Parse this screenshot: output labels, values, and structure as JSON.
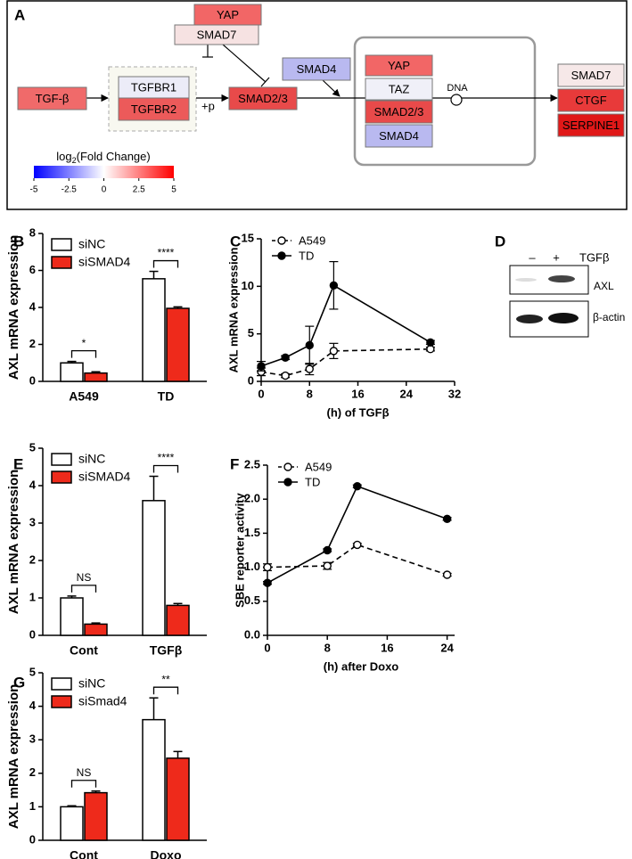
{
  "panel_a": {
    "label": "A",
    "nodes": [
      {
        "text": "YAP",
        "color": "#f26666"
      },
      {
        "text": "SMAD7",
        "color": "#f6e2e2"
      },
      {
        "text": "TGF-β",
        "color": "#f06a6a"
      },
      {
        "text": "TGFBR1",
        "color": "#ececf8"
      },
      {
        "text": "TGFBR2",
        "color": "#ec5a5a"
      },
      {
        "text": "SMAD2/3",
        "color": "#e84a4a"
      },
      {
        "text": "SMAD4",
        "color": "#b9b9f0"
      },
      {
        "text": "YAP",
        "color": "#f26666"
      },
      {
        "text": "TAZ",
        "color": "#f0f0f8"
      },
      {
        "text": "SMAD2/3",
        "color": "#e84a4a"
      },
      {
        "text": "SMAD4",
        "color": "#b9b9f0"
      },
      {
        "text": "SMAD7",
        "color": "#f6e8e8"
      },
      {
        "text": "CTGF",
        "color": "#e83a3a"
      },
      {
        "text": "SERPINE1",
        "color": "#e01818"
      }
    ],
    "phospho": "+p",
    "dna": "DNA",
    "colorbar": {
      "title_main": "log",
      "title_sub": "2",
      "title_rest": "(Fold Change)",
      "colors": [
        "#0000ff",
        "#ffffff",
        "#ff0000"
      ],
      "lim": [
        -5,
        5
      ],
      "ticks": [
        -5,
        -2.5,
        0,
        2.5,
        5
      ]
    }
  },
  "panel_d": {
    "label": "D",
    "lanes": [
      "–",
      "+"
    ],
    "treatment": "TGFβ",
    "rows": [
      "AXL",
      "β-actin"
    ]
  },
  "chart_data": [
    {
      "type": "bar",
      "label": "B",
      "ylabel": "AXL mRNA expression",
      "categories": [
        "A549",
        "TD"
      ],
      "series": [
        {
          "name": "siNC",
          "color": "#ffffff",
          "values": [
            1.0,
            5.55
          ],
          "errors": [
            0.08,
            0.4
          ]
        },
        {
          "name": "siSMAD4",
          "color": "#ee2a1b",
          "values": [
            0.45,
            3.95
          ],
          "errors": [
            0.07,
            0.08
          ]
        }
      ],
      "significance": [
        "*",
        "****"
      ],
      "ylim": [
        0,
        8
      ],
      "yticks": [
        0,
        2,
        4,
        6,
        8
      ]
    },
    {
      "type": "line",
      "label": "C",
      "ylabel": "AXL mRNA expression",
      "xlabel": "(h) of TGFβ",
      "x": [
        0,
        4,
        8,
        12,
        28
      ],
      "series": [
        {
          "name": "A549",
          "color": "#000000",
          "marker": "open",
          "dashed": true,
          "values": [
            1.0,
            0.6,
            1.3,
            3.2,
            3.4
          ],
          "errors": [
            0.4,
            0.2,
            0.6,
            0.8,
            0.2
          ]
        },
        {
          "name": "TD",
          "color": "#000000",
          "marker": "filled",
          "dashed": false,
          "values": [
            1.6,
            2.5,
            3.8,
            10.1,
            4.1
          ],
          "errors": [
            0.5,
            0.2,
            2.0,
            2.5,
            0.2
          ]
        }
      ],
      "xlim": [
        0,
        32
      ],
      "xticks": [
        0,
        8,
        16,
        24,
        32
      ],
      "ylim": [
        0,
        15
      ],
      "yticks": [
        0,
        5,
        10,
        15
      ]
    },
    {
      "type": "bar",
      "label": "E",
      "ylabel": "AXL mRNA expression",
      "categories": [
        "Cont",
        "TGFβ"
      ],
      "series": [
        {
          "name": "siNC",
          "color": "#ffffff",
          "values": [
            1.0,
            3.6
          ],
          "errors": [
            0.05,
            0.65
          ]
        },
        {
          "name": "siSMAD4",
          "color": "#ee2a1b",
          "values": [
            0.3,
            0.8
          ],
          "errors": [
            0.03,
            0.05
          ]
        }
      ],
      "significance": [
        "NS",
        "****"
      ],
      "ylim": [
        0,
        5
      ],
      "yticks": [
        0,
        1,
        2,
        3,
        4,
        5
      ]
    },
    {
      "type": "line",
      "label": "F",
      "ylabel": "SBE reporter activity",
      "xlabel": "(h) after Doxo",
      "x": [
        0,
        8,
        12,
        24
      ],
      "series": [
        {
          "name": "A549",
          "color": "#000000",
          "marker": "open",
          "dashed": true,
          "values": [
            1.0,
            1.02,
            1.33,
            0.89
          ],
          "errors": [
            0.05,
            0.05,
            0.02,
            0.02
          ]
        },
        {
          "name": "TD",
          "color": "#000000",
          "marker": "filled",
          "dashed": false,
          "values": [
            0.77,
            1.25,
            2.19,
            1.71
          ],
          "errors": [
            0.02,
            0.02,
            0.02,
            0.02
          ]
        }
      ],
      "xlim": [
        0,
        25
      ],
      "xticks": [
        0,
        8,
        16,
        24
      ],
      "ylim": [
        0,
        2.5
      ],
      "yticks": [
        {
          "value": 0,
          "label": "0.0"
        },
        0.5,
        {
          "value": 1,
          "label": "1.0"
        },
        1.5,
        {
          "value": 2,
          "label": "2.0"
        },
        2.5
      ]
    },
    {
      "type": "bar",
      "label": "G",
      "ylabel": "AXL mRNA expression",
      "categories": [
        "Cont",
        "Doxo"
      ],
      "series": [
        {
          "name": "siNC",
          "color": "#ffffff",
          "values": [
            1.0,
            3.6
          ],
          "errors": [
            0.03,
            0.65
          ]
        },
        {
          "name": "siSmad4",
          "color": "#ee2a1b",
          "values": [
            1.42,
            2.45
          ],
          "errors": [
            0.05,
            0.2
          ]
        }
      ],
      "significance": [
        "NS",
        "**"
      ],
      "ylim": [
        0,
        5
      ],
      "yticks": [
        0,
        1,
        2,
        3,
        4,
        5
      ]
    }
  ]
}
